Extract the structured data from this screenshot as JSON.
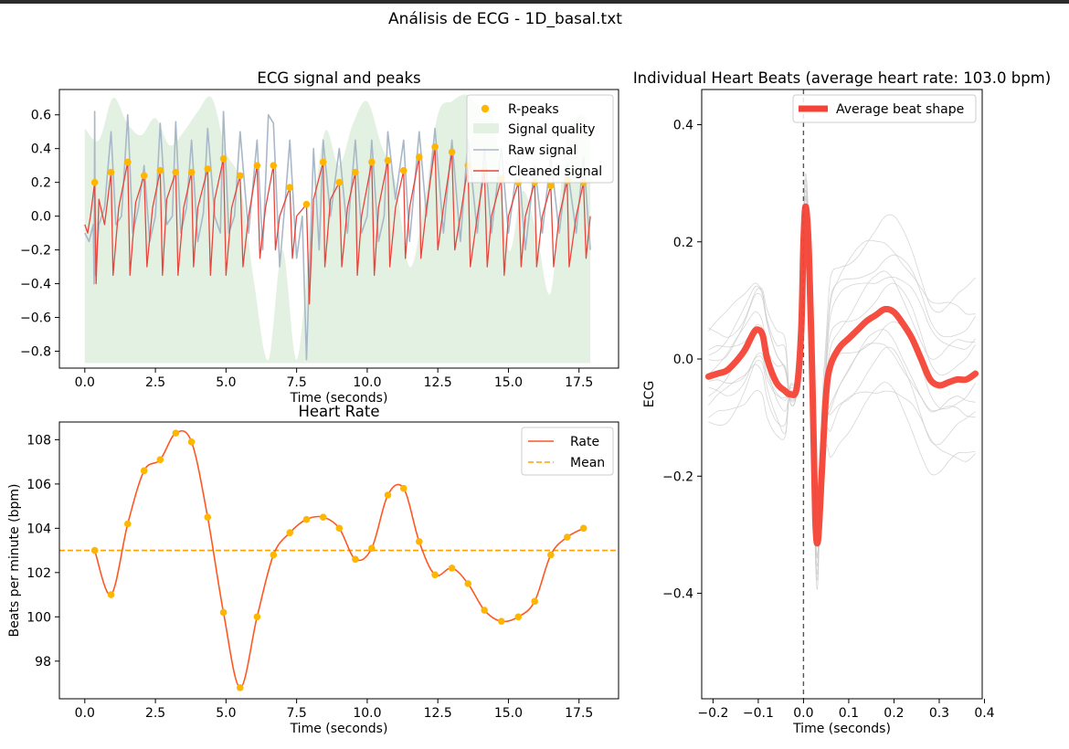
{
  "figure": {
    "suptitle": "Análisis de ECG - 1D_basal.txt"
  },
  "colors": {
    "raw": "#a9b8c8",
    "cleaned": "#e8453c",
    "peaks": "#ffb600",
    "quality": "#e3f1e2",
    "rate": "#ff5722",
    "mean": "#ffa000",
    "beats": "#c8c8c8",
    "average": "#f44336",
    "axis": "#000000"
  },
  "chart_data": [
    {
      "id": "ecg",
      "type": "line",
      "title": "ECG signal and peaks",
      "xlabel": "Time (seconds)",
      "ylabel": "",
      "xlim": [
        -0.9,
        18.9
      ],
      "ylim": [
        -0.9,
        0.75
      ],
      "xticks": [
        0.0,
        2.5,
        5.0,
        7.5,
        10.0,
        12.5,
        15.0,
        17.5
      ],
      "xtick_labels": [
        "0.0",
        "2.5",
        "5.0",
        "7.5",
        "10.0",
        "12.5",
        "15.0",
        "17.5"
      ],
      "yticks": [
        -0.8,
        -0.6,
        -0.4,
        -0.2,
        0.0,
        0.2,
        0.4,
        0.6
      ],
      "ytick_labels": [
        "−0.8",
        "−0.6",
        "−0.4",
        "−0.2",
        "0.0",
        "0.2",
        "0.4",
        "0.6"
      ],
      "legend": {
        "placement": "top-right",
        "entries": [
          "R-peaks",
          "Signal quality",
          "Raw signal",
          "Cleaned signal"
        ]
      },
      "r_peaks": {
        "name": "R-peaks",
        "t": [
          0.35,
          0.93,
          1.52,
          2.1,
          2.67,
          3.22,
          3.78,
          4.35,
          4.91,
          5.5,
          6.1,
          6.68,
          7.26,
          7.85,
          8.44,
          9.01,
          9.58,
          10.16,
          10.73,
          11.29,
          11.84,
          12.4,
          13.0,
          13.57,
          14.15,
          14.75,
          15.35,
          15.93,
          16.5,
          17.08,
          17.66
        ],
        "y": [
          0.2,
          0.26,
          0.32,
          0.24,
          0.27,
          0.26,
          0.26,
          0.28,
          0.34,
          0.24,
          0.3,
          0.3,
          0.17,
          0.07,
          0.32,
          0.2,
          0.26,
          0.32,
          0.33,
          0.27,
          0.35,
          0.41,
          0.38,
          0.3,
          0.27,
          0.22,
          0.2,
          0.2,
          0.18,
          0.21,
          0.2
        ]
      },
      "signal_quality": {
        "name": "Signal quality",
        "t": [
          0.0,
          0.5,
          1.0,
          1.5,
          2.0,
          2.5,
          3.0,
          3.5,
          4.0,
          4.5,
          5.0,
          5.5,
          6.0,
          6.5,
          7.0,
          7.5,
          8.0,
          8.5,
          9.0,
          9.5,
          10.0,
          10.5,
          11.0,
          11.5,
          12.0,
          12.5,
          13.0,
          13.5,
          14.0,
          14.5,
          15.0,
          15.5,
          16.0,
          16.5,
          17.0,
          17.5,
          17.9
        ],
        "y": [
          0.52,
          0.45,
          0.7,
          0.55,
          0.48,
          0.58,
          0.42,
          0.5,
          0.62,
          0.7,
          0.38,
          0.2,
          -0.4,
          -0.85,
          -0.2,
          -0.85,
          -0.1,
          0.5,
          0.3,
          0.55,
          0.68,
          0.42,
          0.2,
          -0.3,
          0.05,
          0.6,
          0.68,
          0.72,
          0.65,
          0.55,
          -0.2,
          0.15,
          -0.1,
          -0.45,
          0.4,
          0.6,
          0.55
        ],
        "baseline": -0.87
      },
      "series": [
        {
          "name": "Raw signal",
          "t": [
            0.0,
            0.15,
            0.3,
            0.33,
            0.35,
            0.37,
            0.5,
            0.7,
            0.93,
            1.1,
            1.3,
            1.52,
            1.7,
            1.9,
            2.1,
            2.3,
            2.5,
            2.67,
            2.9,
            3.1,
            3.22,
            3.4,
            3.6,
            3.78,
            4.0,
            4.2,
            4.35,
            4.6,
            4.8,
            4.91,
            5.1,
            5.3,
            5.5,
            5.8,
            6.1,
            6.3,
            6.5,
            6.68,
            6.9,
            7.1,
            7.26,
            7.5,
            7.7,
            7.85,
            8.1,
            8.3,
            8.44,
            8.7,
            9.01,
            9.3,
            9.58,
            9.8,
            10.0,
            10.16,
            10.4,
            10.6,
            10.73,
            11.0,
            11.29,
            11.5,
            11.84,
            12.1,
            12.4,
            12.7,
            13.0,
            13.3,
            13.57,
            13.9,
            14.15,
            14.4,
            14.75,
            15.0,
            15.35,
            15.6,
            15.93,
            16.2,
            16.5,
            16.8,
            17.08,
            17.4,
            17.66,
            17.9
          ],
          "y": [
            -0.1,
            -0.15,
            -0.05,
            -0.4,
            0.62,
            -0.35,
            -0.05,
            0.05,
            0.5,
            -0.05,
            0.0,
            0.6,
            -0.1,
            0.05,
            0.3,
            -0.15,
            0.0,
            0.55,
            -0.05,
            0.0,
            0.56,
            -0.1,
            0.05,
            0.45,
            -0.15,
            0.02,
            0.52,
            0.0,
            -0.1,
            0.62,
            -0.1,
            0.0,
            0.5,
            -0.1,
            0.45,
            -0.2,
            0.6,
            0.55,
            -0.3,
            0.1,
            0.45,
            -0.25,
            0.0,
            -0.85,
            0.4,
            -0.2,
            0.45,
            0.0,
            0.4,
            -0.1,
            0.45,
            -0.1,
            0.0,
            0.45,
            -0.15,
            0.0,
            0.5,
            0.1,
            0.45,
            -0.15,
            0.5,
            0.0,
            0.52,
            -0.1,
            0.45,
            -0.15,
            0.45,
            -0.1,
            0.4,
            -0.1,
            0.4,
            -0.1,
            0.35,
            -0.2,
            0.3,
            -0.1,
            0.35,
            -0.1,
            0.3,
            -0.1,
            0.35,
            -0.2
          ]
        },
        {
          "name": "Cleaned signal",
          "t": [
            0.0,
            0.1,
            0.2,
            0.35,
            0.4,
            0.5,
            0.7,
            0.93,
            1.0,
            1.2,
            1.52,
            1.6,
            1.8,
            2.1,
            2.2,
            2.4,
            2.67,
            2.75,
            2.9,
            3.22,
            3.3,
            3.5,
            3.78,
            3.85,
            4.0,
            4.35,
            4.45,
            4.6,
            4.91,
            5.0,
            5.2,
            5.5,
            5.6,
            5.8,
            6.1,
            6.2,
            6.4,
            6.68,
            6.75,
            6.9,
            7.26,
            7.35,
            7.5,
            7.85,
            7.95,
            8.1,
            8.44,
            8.5,
            8.7,
            9.01,
            9.1,
            9.3,
            9.58,
            9.65,
            9.8,
            10.16,
            10.25,
            10.4,
            10.73,
            10.8,
            11.0,
            11.29,
            11.35,
            11.5,
            11.84,
            11.9,
            12.1,
            12.4,
            12.5,
            12.7,
            13.0,
            13.1,
            13.3,
            13.57,
            13.65,
            13.9,
            14.15,
            14.25,
            14.4,
            14.75,
            14.85,
            15.0,
            15.35,
            15.45,
            15.6,
            15.93,
            16.0,
            16.2,
            16.5,
            16.6,
            16.8,
            17.08,
            17.15,
            17.4,
            17.66,
            17.75,
            17.9
          ],
          "y": [
            -0.05,
            -0.1,
            0.0,
            0.2,
            -0.4,
            0.1,
            -0.05,
            0.26,
            -0.35,
            0.05,
            0.32,
            -0.35,
            0.08,
            0.24,
            -0.3,
            0.05,
            0.27,
            -0.35,
            0.1,
            0.26,
            -0.35,
            0.05,
            0.26,
            -0.3,
            0.05,
            0.28,
            -0.35,
            0.1,
            0.34,
            -0.35,
            0.05,
            0.24,
            -0.3,
            0.0,
            0.3,
            -0.25,
            0.05,
            0.3,
            -0.2,
            0.0,
            0.17,
            -0.25,
            0.0,
            0.07,
            -0.52,
            0.1,
            0.32,
            -0.3,
            0.1,
            0.2,
            -0.3,
            0.05,
            0.26,
            -0.35,
            0.0,
            0.32,
            -0.35,
            0.05,
            0.33,
            -0.3,
            0.05,
            0.27,
            -0.25,
            0.05,
            0.35,
            -0.25,
            0.05,
            0.41,
            -0.2,
            0.05,
            0.38,
            -0.2,
            0.0,
            0.3,
            -0.3,
            0.0,
            0.27,
            -0.3,
            0.0,
            0.22,
            -0.35,
            0.0,
            0.2,
            -0.3,
            0.0,
            0.2,
            -0.3,
            0.0,
            0.18,
            -0.3,
            0.0,
            0.21,
            -0.3,
            0.0,
            0.2,
            -0.25,
            0.0
          ]
        }
      ]
    },
    {
      "id": "rate",
      "type": "line",
      "title": "Heart Rate",
      "xlabel": "Time (seconds)",
      "ylabel": "Beats per minute (bpm)",
      "xlim": [
        -0.9,
        18.9
      ],
      "ylim": [
        96.3,
        108.8
      ],
      "xticks": [
        0.0,
        2.5,
        5.0,
        7.5,
        10.0,
        12.5,
        15.0,
        17.5
      ],
      "xtick_labels": [
        "0.0",
        "2.5",
        "5.0",
        "7.5",
        "10.0",
        "12.5",
        "15.0",
        "17.5"
      ],
      "yticks": [
        98,
        100,
        102,
        104,
        106,
        108
      ],
      "ytick_labels": [
        "98",
        "100",
        "102",
        "104",
        "106",
        "108"
      ],
      "legend": {
        "placement": "top-right",
        "entries": [
          "Rate",
          "Mean"
        ]
      },
      "mean": 103.0,
      "series": [
        {
          "name": "Rate",
          "t": [
            0.35,
            0.93,
            1.52,
            2.1,
            2.67,
            3.22,
            3.78,
            4.35,
            4.91,
            5.5,
            6.1,
            6.68,
            7.26,
            7.85,
            8.44,
            9.01,
            9.58,
            10.16,
            10.73,
            11.29,
            11.84,
            12.4,
            13.0,
            13.57,
            14.15,
            14.75,
            15.35,
            15.93,
            16.5,
            17.08,
            17.66
          ],
          "y": [
            103.0,
            101.0,
            104.2,
            106.6,
            107.1,
            108.3,
            107.9,
            104.5,
            100.2,
            96.8,
            100.0,
            102.8,
            103.8,
            104.4,
            104.5,
            104.0,
            102.6,
            103.1,
            105.5,
            105.8,
            103.4,
            101.9,
            102.2,
            101.5,
            100.3,
            99.8,
            100.0,
            100.7,
            102.8,
            103.6,
            104.0
          ]
        }
      ]
    },
    {
      "id": "beats",
      "type": "line",
      "title": "Individual Heart Beats (average heart rate: 103.0 bpm)",
      "xlabel": "Time (seconds)",
      "ylabel": "ECG",
      "xlim": [
        -0.225,
        0.395
      ],
      "ylim": [
        -0.58,
        0.46
      ],
      "xticks": [
        -0.2,
        -0.1,
        0.0,
        0.1,
        0.2,
        0.3,
        0.4
      ],
      "xtick_labels": [
        "−0.2",
        "−0.1",
        "0.0",
        "0.1",
        "0.2",
        "0.3",
        "0.4"
      ],
      "yticks": [
        -0.4,
        -0.2,
        0.0,
        0.2,
        0.4
      ],
      "ytick_labels": [
        "−0.4",
        "−0.2",
        "0.0",
        "0.2",
        "0.4"
      ],
      "legend": {
        "placement": "top-right",
        "entries": [
          "Average beat shape"
        ]
      },
      "series": [
        {
          "name": "Average beat shape",
          "t": [
            -0.21,
            -0.19,
            -0.17,
            -0.15,
            -0.13,
            -0.11,
            -0.1,
            -0.09,
            -0.08,
            -0.06,
            -0.04,
            -0.03,
            -0.015,
            -0.005,
            0.0,
            0.005,
            0.012,
            0.02,
            0.026,
            0.032,
            0.04,
            0.05,
            0.06,
            0.08,
            0.1,
            0.12,
            0.14,
            0.16,
            0.18,
            0.2,
            0.22,
            0.24,
            0.26,
            0.28,
            0.3,
            0.32,
            0.34,
            0.36,
            0.38
          ],
          "y": [
            -0.03,
            -0.025,
            -0.02,
            -0.005,
            0.015,
            0.045,
            0.05,
            0.04,
            0.0,
            -0.04,
            -0.055,
            -0.06,
            -0.05,
            0.05,
            0.2,
            0.26,
            0.18,
            -0.05,
            -0.27,
            -0.31,
            -0.2,
            -0.06,
            -0.01,
            0.02,
            0.035,
            0.05,
            0.065,
            0.075,
            0.085,
            0.08,
            0.06,
            0.035,
            0.0,
            -0.035,
            -0.045,
            -0.04,
            -0.035,
            -0.035,
            -0.025
          ]
        }
      ]
    }
  ]
}
